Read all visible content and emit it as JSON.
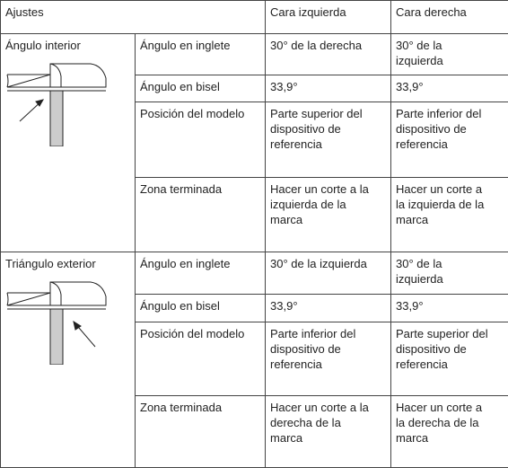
{
  "header": [
    "Ajustes",
    "Cara izquierda",
    "Cara derecha"
  ],
  "groups": [
    {
      "label": "Ángulo interior",
      "rows": [
        [
          "Ángulo en inglete",
          "30° de la derecha",
          "30° de la izquierda"
        ],
        [
          "Ángulo en bisel",
          "33,9°",
          "33,9°"
        ],
        [
          "Posición del modelo",
          "Parte superior del dispositivo de referencia",
          "Parte inferior del dispositivo de referencia"
        ],
        [
          "Zona terminada",
          "Hacer un corte a la izquierda de la marca",
          "Hacer un corte a la izquierda de la marca"
        ]
      ]
    },
    {
      "label": "Triángulo exterior",
      "rows": [
        [
          "Ángulo en inglete",
          "30° de la izquierda",
          "30° de la izquierda"
        ],
        [
          "Ángulo en bisel",
          "33,9°",
          "33,9°"
        ],
        [
          "Posición del modelo",
          "Parte inferior del dispositivo de referencia",
          "Parte superior del dispositivo de referencia"
        ],
        [
          "Zona terminada",
          "Hacer un corte a la derecha de la marca",
          "Hacer un corte a la derecha de la marca"
        ]
      ]
    }
  ]
}
